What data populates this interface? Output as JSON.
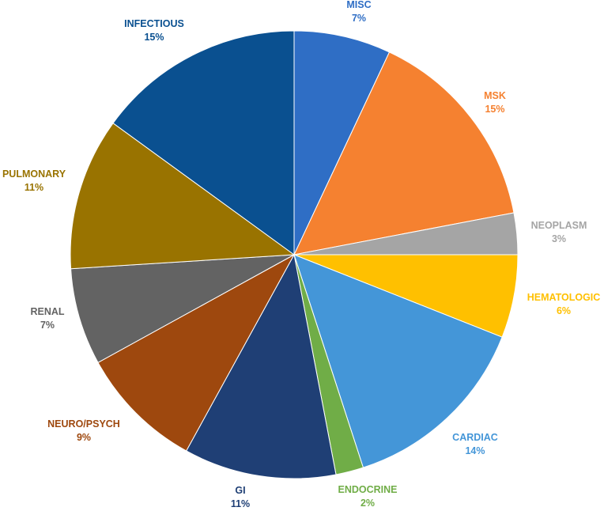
{
  "chart_data": {
    "type": "pie",
    "title": "",
    "slices": [
      {
        "name": "MISC",
        "value": 7,
        "label": "7%",
        "color": "#2F6EC5"
      },
      {
        "name": "MSK",
        "value": 15,
        "label": "15%",
        "color": "#F58130"
      },
      {
        "name": "NEOPLASM",
        "value": 3,
        "label": "3%",
        "color": "#A5A5A5"
      },
      {
        "name": "HEMATOLOGIC",
        "value": 6,
        "label": "6%",
        "color": "#FFC000"
      },
      {
        "name": "CARDIAC",
        "value": 14,
        "label": "14%",
        "color": "#4496D8"
      },
      {
        "name": "ENDOCRINE",
        "value": 2,
        "label": "2%",
        "color": "#70AD47"
      },
      {
        "name": "GI",
        "value": 11,
        "label": "11%",
        "color": "#1F3F75"
      },
      {
        "name": "NEURO/PSYCH",
        "value": 9,
        "label": "9%",
        "color": "#9E480E"
      },
      {
        "name": "RENAL",
        "value": 7,
        "label": "7%",
        "color": "#636363"
      },
      {
        "name": "PULMONARY",
        "value": 11,
        "label": "11%",
        "color": "#997300"
      },
      {
        "name": "INFECTIOUS",
        "value": 15,
        "label": "15%",
        "color": "#0A5090"
      }
    ]
  }
}
